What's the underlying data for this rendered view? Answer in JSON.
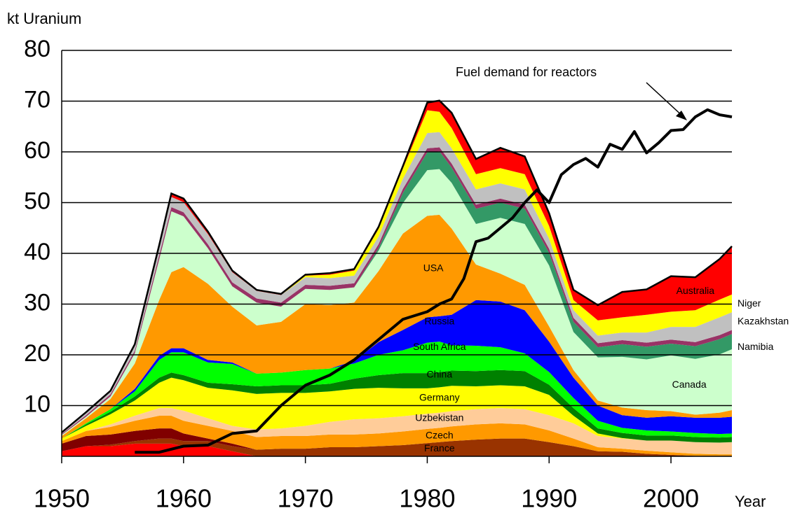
{
  "chart_data": {
    "type": "stacked_area",
    "y_label": "kt Uranium",
    "x_label": "Year",
    "xlim": [
      1950,
      2005
    ],
    "xticks": [
      1950,
      1960,
      1970,
      1980,
      1990,
      2000
    ],
    "ylim": [
      0,
      80
    ],
    "yticks": [
      10,
      20,
      30,
      40,
      50,
      60,
      70,
      80
    ],
    "grid": true,
    "x": [
      1950,
      1952,
      1954,
      1956,
      1958,
      1959,
      1960,
      1962,
      1964,
      1966,
      1968,
      1970,
      1972,
      1974,
      1976,
      1978,
      1980,
      1981,
      1982,
      1984,
      1986,
      1988,
      1990,
      1992,
      1994,
      1996,
      1998,
      2000,
      2002,
      2004,
      2005
    ],
    "series": [
      {
        "color": "#ff0000",
        "values": [
          1,
          2,
          2,
          2.5,
          2.5,
          2.5,
          2,
          2,
          1,
          0,
          0,
          0,
          0,
          0,
          0,
          0,
          0,
          0,
          0,
          0,
          0,
          0,
          0,
          0,
          0,
          0,
          0,
          0,
          0,
          0,
          0
        ]
      },
      {
        "name": "France",
        "color": "#993300",
        "values": [
          0,
          0,
          0.3,
          0.5,
          1,
          1,
          1,
          1,
          1,
          1.3,
          1.5,
          1.5,
          1.8,
          1.8,
          2,
          2.2,
          2.6,
          2.8,
          3,
          3.3,
          3.5,
          3.5,
          2.8,
          2,
          1,
          0.9,
          0.5,
          0.3,
          0.1,
          0,
          0
        ]
      },
      {
        "color": "#800000",
        "values": [
          1.5,
          2,
          2,
          2,
          2,
          2,
          1.5,
          0.5,
          0.5,
          0,
          0,
          0,
          0,
          0,
          0,
          0,
          0,
          0,
          0,
          0,
          0,
          0,
          0,
          0,
          0,
          0,
          0,
          0,
          0,
          0,
          0
        ]
      },
      {
        "name": "Czech",
        "color": "#ff9900",
        "values": [
          0.5,
          1,
          1.5,
          2,
          2.5,
          2.5,
          2.5,
          2.5,
          2.5,
          2.5,
          2.5,
          2.5,
          2.5,
          2.5,
          2.5,
          2.7,
          2.8,
          2.8,
          2.9,
          3,
          3,
          2.8,
          2.3,
          1.5,
          0.8,
          0.6,
          0.6,
          0.5,
          0.4,
          0.4,
          0.4
        ]
      },
      {
        "name": "Uzbekistan",
        "color": "#ffcc99",
        "values": [
          0,
          0,
          0.5,
          1,
          1.5,
          1.5,
          2,
          1.5,
          1,
          1.5,
          1.5,
          2,
          2.5,
          3,
          3,
          3,
          3,
          3,
          3,
          3,
          3,
          3,
          3,
          3,
          2.2,
          2,
          2,
          2.3,
          2.3,
          2.3,
          2.4
        ]
      },
      {
        "name": "Germany",
        "color": "#ffff00",
        "values": [
          0.5,
          1,
          2,
          3,
          5,
          6,
          6,
          6,
          7,
          7,
          7,
          6.5,
          6,
          6,
          6,
          5.5,
          5,
          5,
          5,
          4.5,
          4.5,
          4.5,
          4,
          1.5,
          0.5,
          0.1,
          0,
          0,
          0,
          0,
          0
        ]
      },
      {
        "name": "China",
        "color": "#008000",
        "values": [
          0,
          0.3,
          0.5,
          0.8,
          1,
          1,
          1,
          1,
          1.2,
          1.5,
          1.5,
          1.5,
          1.5,
          2,
          2.5,
          3,
          3,
          3,
          3,
          3,
          3,
          3,
          2,
          1.5,
          1,
          1,
          1,
          1,
          1,
          1,
          1
        ]
      },
      {
        "name": "South Africa",
        "color": "#00ff00",
        "values": [
          0,
          0.2,
          0.5,
          1,
          3.5,
          4,
          4.5,
          4,
          4,
          2.5,
          2.5,
          3,
          3,
          3,
          4,
          4.5,
          6,
          6,
          5,
          5,
          4.5,
          3.5,
          2.5,
          2,
          1.5,
          1,
          1,
          0.8,
          0.8,
          0.7,
          0.7
        ]
      },
      {
        "name": "Russia",
        "color": "#0000ff",
        "values": [
          0,
          0,
          0,
          0.5,
          0.8,
          0.8,
          0.8,
          0.5,
          0.3,
          0,
          0,
          0,
          0,
          0.5,
          2.5,
          4,
          5,
          5,
          6,
          9,
          9,
          8.5,
          6,
          4,
          3,
          2.5,
          2.5,
          3,
          3,
          3.2,
          3.3
        ]
      },
      {
        "name": "USA",
        "color": "#ff9900",
        "values": [
          0.5,
          1,
          2,
          5,
          11,
          15,
          16,
          15,
          11,
          9.5,
          10,
          13,
          12.5,
          11.5,
          14,
          19,
          20,
          20,
          17,
          7,
          5.5,
          5,
          3,
          1.5,
          1,
          1.5,
          1.5,
          1,
          0.6,
          1,
          1.3
        ]
      },
      {
        "name": "Canada",
        "color": "#ccffcc",
        "values": [
          0.2,
          0.3,
          0.5,
          2,
          8,
          12,
          10,
          7,
          4,
          4.5,
          3,
          3,
          3,
          3,
          4,
          6,
          9,
          9,
          9,
          8,
          11,
          12,
          12,
          7.5,
          8.5,
          10,
          10,
          11,
          11,
          11.5,
          12
        ]
      },
      {
        "name": "Namibia",
        "color": "#339966",
        "values": [
          0,
          0,
          0,
          0,
          0,
          0,
          0,
          0,
          0,
          0,
          0,
          0,
          0,
          0,
          0.5,
          2,
          3.5,
          3.5,
          3,
          3,
          3,
          3,
          2.5,
          2,
          2,
          2.5,
          2.5,
          2.3,
          2.5,
          3,
          3
        ]
      },
      {
        "color": "#993366",
        "values": [
          0.2,
          0.3,
          0.4,
          0.5,
          0.8,
          0.8,
          0.8,
          0.8,
          0.8,
          0.8,
          0.8,
          0.8,
          0.8,
          0.8,
          0.8,
          0.8,
          0.8,
          0.8,
          0.8,
          0.8,
          0.8,
          0.8,
          0.8,
          0.8,
          0.8,
          0.8,
          0.8,
          0.8,
          0.8,
          0.8,
          0.8
        ]
      },
      {
        "name": "Kazakhstan",
        "color": "#c0c0c0",
        "values": [
          0.3,
          0.5,
          0.5,
          1,
          1.5,
          2,
          2,
          2,
          2,
          1.5,
          1.5,
          1.5,
          1.5,
          1.5,
          1.5,
          2,
          3,
          3,
          3,
          3,
          3,
          3,
          2,
          1.5,
          1.5,
          1.5,
          2,
          2.5,
          3,
          3.5,
          3.5
        ]
      },
      {
        "name": "Niger",
        "color": "#ffff00",
        "values": [
          0,
          0,
          0,
          0,
          0,
          0,
          0,
          0,
          0,
          0,
          0,
          0.3,
          0.7,
          1,
          1.5,
          2,
          4.5,
          4,
          4,
          3,
          3,
          3,
          2.5,
          2,
          3,
          3,
          3.5,
          3,
          3.3,
          3.5,
          3.5
        ]
      },
      {
        "name": "Australia",
        "color": "#ff0000",
        "values": [
          0,
          0.1,
          0.2,
          0.3,
          0.5,
          0.7,
          0.7,
          0.5,
          0.3,
          0.2,
          0.2,
          0.2,
          0.3,
          0.3,
          0.4,
          0.5,
          1.5,
          2.2,
          3,
          3,
          4,
          3.5,
          2.5,
          2,
          3,
          5,
          5,
          7,
          6.5,
          8,
          9.5
        ]
      }
    ],
    "demand": {
      "name": "Fuel demand for reactors",
      "color": "#000000",
      "x": [
        1956,
        1958,
        1960,
        1962,
        1964,
        1966,
        1968,
        1970,
        1972,
        1974,
        1976,
        1978,
        1980,
        1981,
        1982,
        1983,
        1984,
        1985,
        1986,
        1987,
        1988,
        1989,
        1990,
        1991,
        1992,
        1993,
        1994,
        1995,
        1996,
        1997,
        1998,
        1999,
        2000,
        2001,
        2002,
        2003,
        2004,
        2005
      ],
      "values": [
        0.8,
        0.8,
        2,
        2.2,
        4.5,
        5,
        10,
        14,
        16,
        19,
        23,
        27,
        28.5,
        30,
        31,
        35,
        42.3,
        43,
        45,
        47,
        50,
        52.5,
        50,
        55.5,
        57.5,
        58.7,
        57,
        61.5,
        60.5,
        64,
        59.8,
        61.8,
        64.2,
        64.4,
        66.9,
        68.3,
        67.3,
        66.9
      ]
    }
  }
}
